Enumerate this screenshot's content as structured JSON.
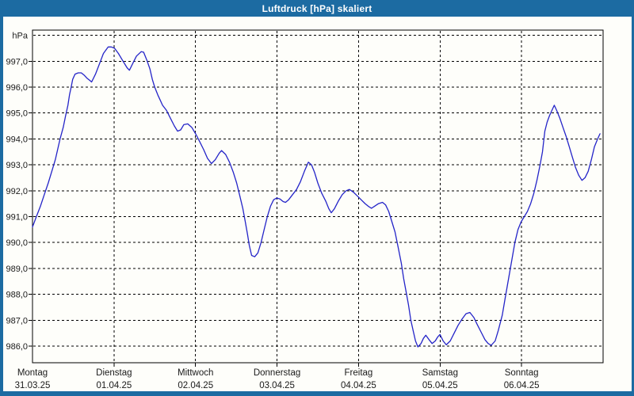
{
  "window": {
    "title": "Luftdruck [hPa] skaliert",
    "title_bar_color": "#1c6ba2",
    "border_color": "#1c6ba2",
    "background_color": "#fefefa",
    "text_color": "#1a1a1a"
  },
  "chart_data": {
    "type": "line",
    "title": "Luftdruck [hPa] skaliert",
    "y_axis_unit_label": "hPa",
    "grid": "dashed",
    "legend": "none",
    "line_color": "#2424c8",
    "frame_color": "#000000",
    "ylim": [
      985.3,
      998.25
    ],
    "xlim_days": [
      0,
      7
    ],
    "y_top_line": {
      "value": 998,
      "label": "hPa"
    },
    "y_ticks": [
      {
        "value": 997,
        "label": "997,0"
      },
      {
        "value": 996,
        "label": "996,0"
      },
      {
        "value": 995,
        "label": "995,0"
      },
      {
        "value": 994,
        "label": "994,0"
      },
      {
        "value": 993,
        "label": "993,0"
      },
      {
        "value": 992,
        "label": "992,0"
      },
      {
        "value": 991,
        "label": "991,0"
      },
      {
        "value": 990,
        "label": "990,0"
      },
      {
        "value": 989,
        "label": "989,0"
      },
      {
        "value": 988,
        "label": "988,0"
      },
      {
        "value": 987,
        "label": "987,0"
      },
      {
        "value": 986,
        "label": "986,0"
      }
    ],
    "x_categories": [
      {
        "day": "Montag",
        "date": "31.03.25"
      },
      {
        "day": "Dienstag",
        "date": "01.04.25"
      },
      {
        "day": "Mittwoch",
        "date": "02.04.25"
      },
      {
        "day": "Donnerstag",
        "date": "03.04.25"
      },
      {
        "day": "Freitag",
        "date": "04.04.25"
      },
      {
        "day": "Samstag",
        "date": "05.04.25"
      },
      {
        "day": "Sonntag",
        "date": "06.04.25"
      }
    ],
    "series": [
      {
        "name": "Luftdruck",
        "unit": "hPa",
        "points": [
          [
            0.0,
            990.6
          ],
          [
            0.048,
            991.0
          ],
          [
            0.097,
            991.4
          ],
          [
            0.145,
            991.85
          ],
          [
            0.193,
            992.3
          ],
          [
            0.242,
            992.8
          ],
          [
            0.28,
            993.2
          ],
          [
            0.309,
            993.6
          ],
          [
            0.338,
            994.0
          ],
          [
            0.377,
            994.45
          ],
          [
            0.406,
            994.9
          ],
          [
            0.435,
            995.3
          ],
          [
            0.454,
            995.7
          ],
          [
            0.474,
            996.0
          ],
          [
            0.493,
            996.3
          ],
          [
            0.522,
            996.5
          ],
          [
            0.561,
            996.55
          ],
          [
            0.599,
            996.55
          ],
          [
            0.638,
            996.45
          ],
          [
            0.667,
            996.35
          ],
          [
            0.706,
            996.25
          ],
          [
            0.725,
            996.2
          ],
          [
            0.773,
            996.5
          ],
          [
            0.822,
            996.9
          ],
          [
            0.87,
            997.3
          ],
          [
            0.928,
            997.55
          ],
          [
            0.967,
            997.55
          ],
          [
            1.006,
            997.5
          ],
          [
            1.054,
            997.3
          ],
          [
            1.102,
            997.05
          ],
          [
            1.16,
            996.75
          ],
          [
            1.189,
            996.65
          ],
          [
            1.228,
            996.9
          ],
          [
            1.276,
            997.2
          ],
          [
            1.334,
            997.37
          ],
          [
            1.363,
            997.35
          ],
          [
            1.402,
            997.05
          ],
          [
            1.441,
            996.7
          ],
          [
            1.47,
            996.3
          ],
          [
            1.499,
            996.0
          ],
          [
            1.537,
            995.7
          ],
          [
            1.566,
            995.5
          ],
          [
            1.595,
            995.3
          ],
          [
            1.644,
            995.1
          ],
          [
            1.692,
            994.8
          ],
          [
            1.74,
            994.5
          ],
          [
            1.779,
            994.3
          ],
          [
            1.818,
            994.35
          ],
          [
            1.856,
            994.55
          ],
          [
            1.905,
            994.58
          ],
          [
            1.953,
            994.45
          ],
          [
            2.001,
            994.2
          ],
          [
            2.05,
            993.9
          ],
          [
            2.098,
            993.6
          ],
          [
            2.147,
            993.25
          ],
          [
            2.195,
            993.05
          ],
          [
            2.243,
            993.2
          ],
          [
            2.291,
            993.45
          ],
          [
            2.32,
            993.55
          ],
          [
            2.369,
            993.4
          ],
          [
            2.417,
            993.1
          ],
          [
            2.465,
            992.7
          ],
          [
            2.504,
            992.3
          ],
          [
            2.543,
            991.8
          ],
          [
            2.581,
            991.3
          ],
          [
            2.61,
            990.8
          ],
          [
            2.639,
            990.3
          ],
          [
            2.659,
            989.9
          ],
          [
            2.688,
            989.5
          ],
          [
            2.726,
            989.45
          ],
          [
            2.765,
            989.6
          ],
          [
            2.804,
            990.0
          ],
          [
            2.842,
            990.5
          ],
          [
            2.881,
            991.0
          ],
          [
            2.92,
            991.4
          ],
          [
            2.958,
            991.65
          ],
          [
            2.997,
            991.72
          ],
          [
            3.036,
            991.68
          ],
          [
            3.075,
            991.58
          ],
          [
            3.104,
            991.55
          ],
          [
            3.142,
            991.65
          ],
          [
            3.191,
            991.85
          ],
          [
            3.239,
            992.05
          ],
          [
            3.287,
            992.35
          ],
          [
            3.336,
            992.75
          ],
          [
            3.384,
            993.1
          ],
          [
            3.423,
            993.0
          ],
          [
            3.461,
            992.7
          ],
          [
            3.5,
            992.3
          ],
          [
            3.549,
            991.9
          ],
          [
            3.597,
            991.6
          ],
          [
            3.636,
            991.3
          ],
          [
            3.665,
            991.15
          ],
          [
            3.703,
            991.3
          ],
          [
            3.752,
            991.6
          ],
          [
            3.8,
            991.85
          ],
          [
            3.848,
            992.0
          ],
          [
            3.887,
            992.05
          ],
          [
            3.935,
            991.95
          ],
          [
            3.984,
            991.8
          ],
          [
            4.032,
            991.65
          ],
          [
            4.08,
            991.5
          ],
          [
            4.119,
            991.4
          ],
          [
            4.158,
            991.32
          ],
          [
            4.196,
            991.4
          ],
          [
            4.245,
            991.5
          ],
          [
            4.293,
            991.55
          ],
          [
            4.332,
            991.45
          ],
          [
            4.37,
            991.2
          ],
          [
            4.409,
            990.8
          ],
          [
            4.448,
            990.4
          ],
          [
            4.487,
            989.8
          ],
          [
            4.525,
            989.2
          ],
          [
            4.554,
            988.6
          ],
          [
            4.583,
            988.1
          ],
          [
            4.612,
            987.6
          ],
          [
            4.641,
            987.0
          ],
          [
            4.67,
            986.6
          ],
          [
            4.699,
            986.2
          ],
          [
            4.728,
            985.97
          ],
          [
            4.767,
            986.1
          ],
          [
            4.796,
            986.3
          ],
          [
            4.825,
            986.42
          ],
          [
            4.864,
            986.25
          ],
          [
            4.902,
            986.1
          ],
          [
            4.941,
            986.2
          ],
          [
            4.97,
            986.35
          ],
          [
            4.999,
            986.45
          ],
          [
            5.038,
            986.2
          ],
          [
            5.076,
            986.05
          ],
          [
            5.125,
            986.2
          ],
          [
            5.173,
            986.5
          ],
          [
            5.221,
            986.8
          ],
          [
            5.27,
            987.05
          ],
          [
            5.318,
            987.25
          ],
          [
            5.366,
            987.3
          ],
          [
            5.415,
            987.1
          ],
          [
            5.453,
            986.85
          ],
          [
            5.502,
            986.55
          ],
          [
            5.55,
            986.25
          ],
          [
            5.589,
            986.1
          ],
          [
            5.627,
            986.03
          ],
          [
            5.676,
            986.2
          ],
          [
            5.714,
            986.6
          ],
          [
            5.763,
            987.2
          ],
          [
            5.801,
            987.9
          ],
          [
            5.84,
            988.6
          ],
          [
            5.879,
            989.3
          ],
          [
            5.918,
            990.0
          ],
          [
            5.956,
            990.5
          ],
          [
            5.995,
            990.8
          ],
          [
            6.034,
            991.0
          ],
          [
            6.072,
            991.2
          ],
          [
            6.111,
            991.5
          ],
          [
            6.15,
            991.9
          ],
          [
            6.188,
            992.4
          ],
          [
            6.227,
            993.0
          ],
          [
            6.256,
            993.5
          ],
          [
            6.285,
            994.3
          ],
          [
            6.314,
            994.65
          ],
          [
            6.343,
            994.9
          ],
          [
            6.372,
            995.1
          ],
          [
            6.401,
            995.3
          ],
          [
            6.43,
            995.1
          ],
          [
            6.469,
            994.8
          ],
          [
            6.507,
            994.45
          ],
          [
            6.546,
            994.1
          ],
          [
            6.585,
            993.7
          ],
          [
            6.623,
            993.3
          ],
          [
            6.662,
            992.9
          ],
          [
            6.701,
            992.6
          ],
          [
            6.74,
            992.4
          ],
          [
            6.778,
            992.5
          ],
          [
            6.817,
            992.75
          ],
          [
            6.856,
            993.2
          ],
          [
            6.894,
            993.7
          ],
          [
            6.933,
            994.0
          ],
          [
            6.962,
            994.2
          ]
        ]
      }
    ]
  }
}
